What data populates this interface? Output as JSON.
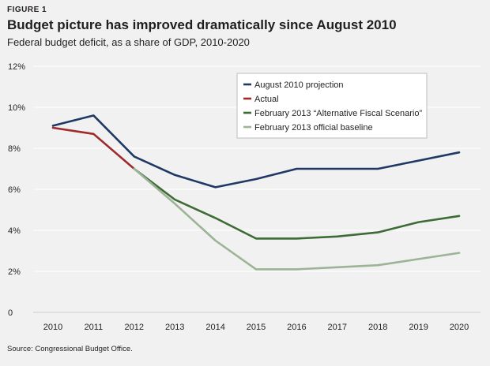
{
  "figure_label": "FIGURE 1",
  "title": "Budget picture has improved dramatically since August 2010",
  "subtitle": "Federal budget deficit, as a share of GDP, 2010-2020",
  "source": "Source: Congressional Budget Office.",
  "chart_data": {
    "type": "line",
    "title": "Budget picture has improved dramatically since August 2010",
    "subtitle": "Federal budget deficit, as a share of GDP, 2010-2020",
    "xlabel": "",
    "ylabel": "",
    "x": [
      2010,
      2011,
      2012,
      2013,
      2014,
      2015,
      2016,
      2017,
      2018,
      2019,
      2020
    ],
    "x_tick_labels": [
      "2010",
      "2011",
      "2012",
      "2013",
      "2014",
      "2015",
      "2016",
      "2017",
      "2018",
      "2019",
      "2020"
    ],
    "ylim": [
      0,
      12
    ],
    "y_ticks": [
      0,
      2,
      4,
      6,
      8,
      10,
      12
    ],
    "y_tick_labels": [
      "0",
      "2%",
      "4%",
      "6%",
      "8%",
      "10%",
      "12%"
    ],
    "grid": true,
    "legend_position": "top-right",
    "series": [
      {
        "name": "August 2010 projection",
        "color": "#1f3864",
        "x": [
          2010,
          2011,
          2012,
          2013,
          2014,
          2015,
          2016,
          2017,
          2018,
          2019,
          2020
        ],
        "values": [
          9.1,
          9.6,
          7.6,
          6.7,
          6.1,
          6.5,
          7.0,
          7.0,
          7.0,
          7.4,
          7.8
        ]
      },
      {
        "name": "Actual",
        "color": "#9e2a2b",
        "x": [
          2010,
          2011,
          2012
        ],
        "values": [
          9.0,
          8.7,
          7.0
        ]
      },
      {
        "name": "February 2013 “Alternative Fiscal Scenario”",
        "color": "#3d6b35",
        "x": [
          2012,
          2013,
          2014,
          2015,
          2016,
          2017,
          2018,
          2019,
          2020
        ],
        "values": [
          7.0,
          5.5,
          4.6,
          3.6,
          3.6,
          3.7,
          3.9,
          4.4,
          4.7
        ]
      },
      {
        "name": "February 2013 official baseline",
        "color": "#9db396",
        "x": [
          2012,
          2013,
          2014,
          2015,
          2016,
          2017,
          2018,
          2019,
          2020
        ],
        "values": [
          7.0,
          5.3,
          3.5,
          2.1,
          2.1,
          2.2,
          2.3,
          2.6,
          2.9
        ]
      }
    ]
  }
}
